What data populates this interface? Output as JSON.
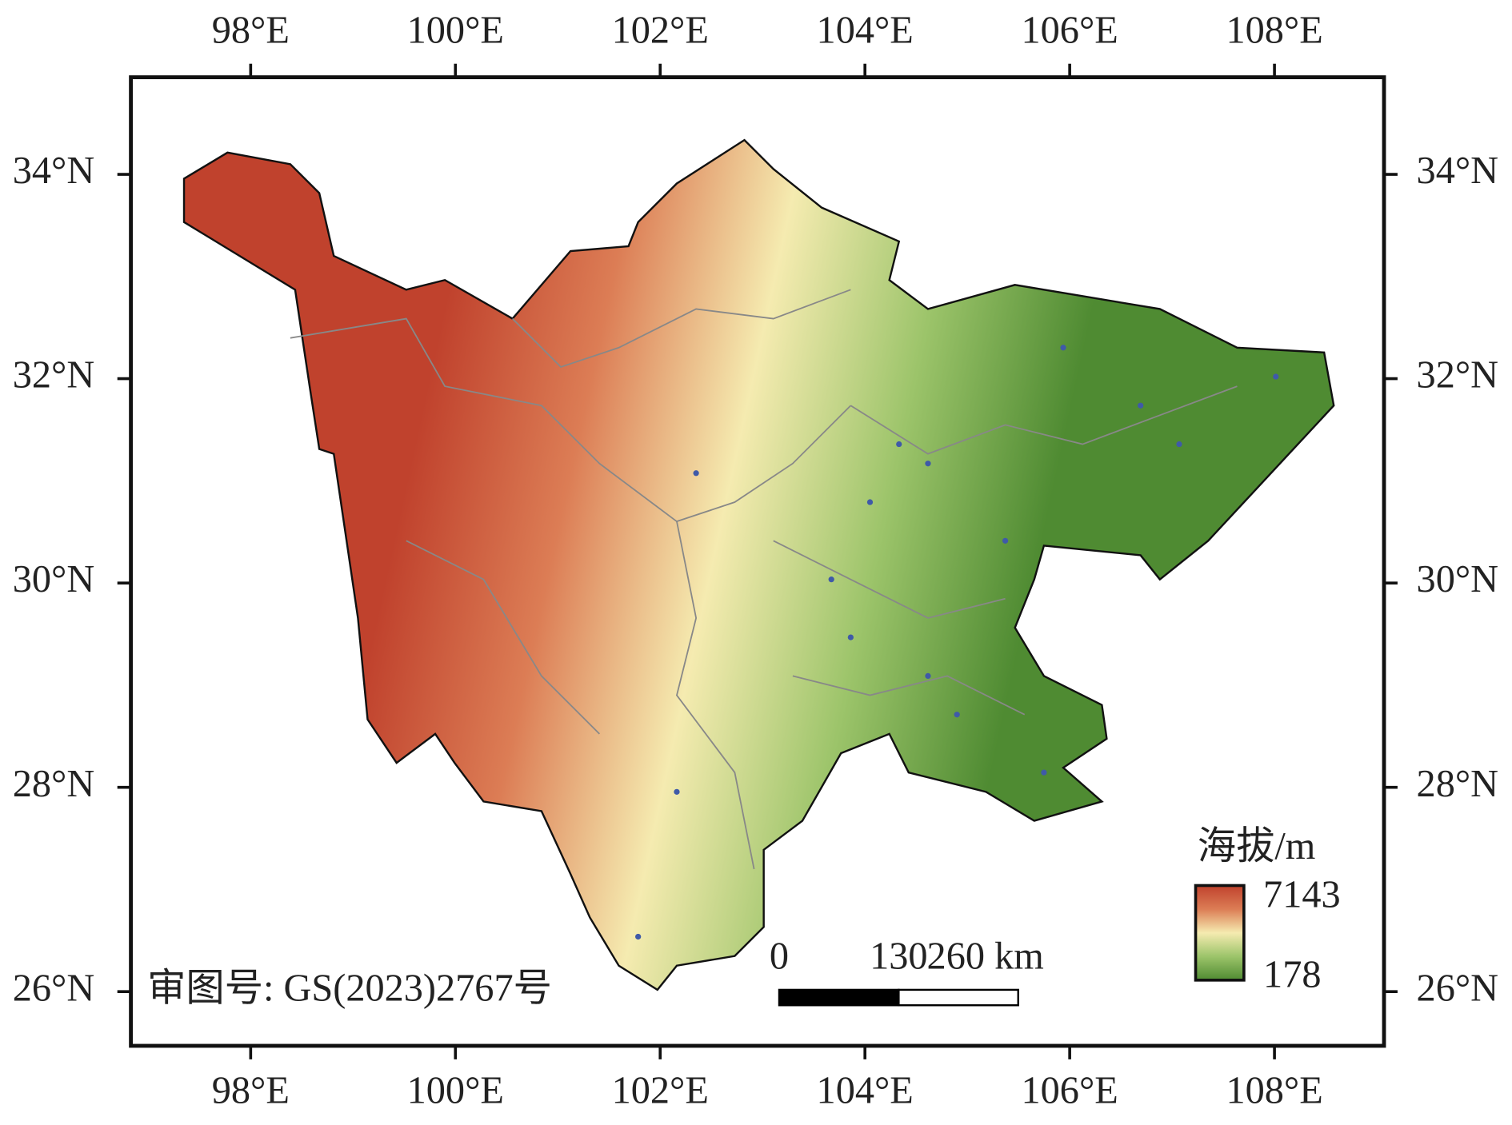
{
  "map": {
    "lonlim": [
      96.83,
      109.07
    ],
    "latlim": [
      25.47,
      34.95
    ],
    "lon_ticks": [
      {
        "value": 98,
        "label": "98°E"
      },
      {
        "value": 100,
        "label": "100°E"
      },
      {
        "value": 102,
        "label": "102°E"
      },
      {
        "value": 104,
        "label": "104°E"
      },
      {
        "value": 106,
        "label": "106°E"
      },
      {
        "value": 108,
        "label": "108°E"
      }
    ],
    "lat_ticks": [
      {
        "value": 26,
        "label": "26°N"
      },
      {
        "value": 28,
        "label": "28°N"
      },
      {
        "value": 30,
        "label": "30°N"
      },
      {
        "value": 32,
        "label": "32°N"
      },
      {
        "value": 34,
        "label": "34°N"
      }
    ],
    "legend": {
      "title": "海拔/m",
      "max": 7143,
      "min": 178,
      "colors": [
        "#c0422d",
        "#dc7d55",
        "#f5ebb0",
        "#9cc46a",
        "#4f8b32"
      ]
    },
    "scale_bar": {
      "ticks": [
        0,
        130,
        {
          "value": 260,
          "label": "260 km"
        }
      ]
    },
    "approval_number": "审图号: GS(2023)2767号"
  }
}
